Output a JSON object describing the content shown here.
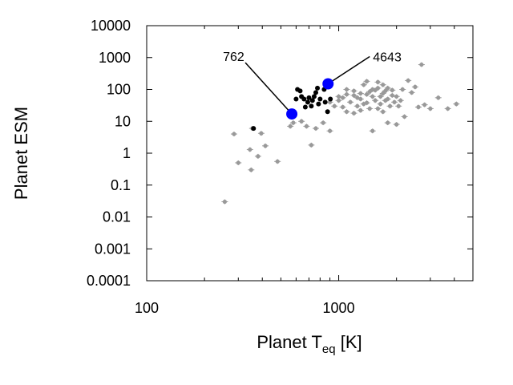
{
  "chart_data": {
    "type": "scatter",
    "title": "",
    "xlabel_main": "Planet T",
    "xlabel_sub": "eq",
    "xlabel_unit": " [K]",
    "ylabel": "Planet ESM",
    "x_scale": "log",
    "y_scale": "log",
    "xlim": [
      100,
      5000
    ],
    "ylim": [
      0.0001,
      10000
    ],
    "x_ticks": [
      {
        "value": 100,
        "label": "100"
      },
      {
        "value": 1000,
        "label": "1000"
      }
    ],
    "y_ticks": [
      {
        "value": 0.0001,
        "label": "0.0001"
      },
      {
        "value": 0.001,
        "label": "0.001"
      },
      {
        "value": 0.01,
        "label": "0.01"
      },
      {
        "value": 0.1,
        "label": "0.1"
      },
      {
        "value": 1,
        "label": "1"
      },
      {
        "value": 10,
        "label": "10"
      },
      {
        "value": 100,
        "label": "100"
      },
      {
        "value": 1000,
        "label": "1000"
      },
      {
        "value": 10000,
        "label": "10000"
      }
    ],
    "grid": false,
    "colors": {
      "background_population": "#999999",
      "subset": "#000000",
      "highlight": "#0000ff"
    },
    "series": [
      {
        "role": "background",
        "color": "#999999",
        "points": [
          [
            255,
            0.03
          ],
          [
            350,
            0.3
          ],
          [
            300,
            0.5
          ],
          [
            380,
            0.8
          ],
          [
            345,
            1.3
          ],
          [
            415,
            1.7
          ],
          [
            480,
            0.55
          ],
          [
            285,
            4
          ],
          [
            355,
            6
          ],
          [
            395,
            4.2
          ],
          [
            560,
            7
          ],
          [
            580,
            9
          ],
          [
            640,
            10
          ],
          [
            720,
            1.8
          ],
          [
            680,
            7
          ],
          [
            760,
            6
          ],
          [
            830,
            9
          ],
          [
            900,
            5
          ],
          [
            1500,
            5
          ],
          [
            1800,
            9
          ],
          [
            2000,
            8
          ],
          [
            2200,
            14
          ],
          [
            2600,
            28
          ],
          [
            2800,
            33
          ],
          [
            3000,
            25
          ],
          [
            3300,
            55
          ],
          [
            3700,
            25
          ],
          [
            4100,
            35
          ],
          [
            2500,
            120
          ],
          [
            2300,
            190
          ],
          [
            2700,
            600
          ],
          [
            1600,
            170
          ],
          [
            1400,
            180
          ],
          [
            1200,
            90
          ],
          [
            1100,
            70
          ],
          [
            1000,
            45
          ],
          [
            1300,
            50
          ],
          [
            1500,
            60
          ],
          [
            1700,
            75
          ],
          [
            1900,
            65
          ],
          [
            1450,
            25
          ],
          [
            1250,
            30
          ],
          [
            1100,
            20
          ],
          [
            1650,
            35
          ],
          [
            2100,
            45
          ],
          [
            1800,
            110
          ],
          [
            1350,
            140
          ],
          [
            1550,
            95
          ],
          [
            1050,
            55
          ],
          [
            950,
            30
          ],
          [
            1150,
            40
          ],
          [
            1750,
            45
          ],
          [
            2000,
            60
          ],
          [
            1600,
            25
          ],
          [
            1200,
            18
          ],
          [
            1400,
            38
          ],
          [
            1300,
            75
          ],
          [
            1700,
            140
          ],
          [
            2400,
            80
          ],
          [
            1850,
            30
          ],
          [
            1950,
            40
          ],
          [
            1050,
            28
          ],
          [
            1500,
            100
          ],
          [
            1250,
            55
          ],
          [
            1650,
            60
          ],
          [
            900,
            40
          ],
          [
            1100,
            100
          ],
          [
            1400,
            70
          ],
          [
            1550,
            45
          ],
          [
            1350,
            35
          ],
          [
            1750,
            90
          ],
          [
            2150,
            100
          ],
          [
            1450,
            85
          ],
          [
            1600,
            110
          ],
          [
            1900,
            95
          ],
          [
            1000,
            60
          ],
          [
            1200,
            65
          ],
          [
            1800,
            50
          ],
          [
            2050,
            30
          ],
          [
            1300,
            22
          ],
          [
            1700,
            20
          ]
        ]
      },
      {
        "role": "subset",
        "color": "#000000",
        "points": [
          [
            360,
            6
          ],
          [
            610,
            100
          ],
          [
            630,
            90
          ],
          [
            640,
            60
          ],
          [
            660,
            50
          ],
          [
            690,
            40
          ],
          [
            700,
            55
          ],
          [
            720,
            30
          ],
          [
            730,
            45
          ],
          [
            745,
            60
          ],
          [
            760,
            80
          ],
          [
            775,
            110
          ],
          [
            785,
            35
          ],
          [
            800,
            50
          ],
          [
            840,
            100
          ],
          [
            850,
            40
          ],
          [
            875,
            20
          ],
          [
            905,
            50
          ],
          [
            600,
            50
          ],
          [
            670,
            28
          ]
        ]
      },
      {
        "role": "highlight",
        "color": "#0000ff",
        "points": [
          {
            "x": 570,
            "y": 17,
            "label": "762"
          },
          {
            "x": 880,
            "y": 150,
            "label": "4643"
          }
        ]
      }
    ]
  }
}
